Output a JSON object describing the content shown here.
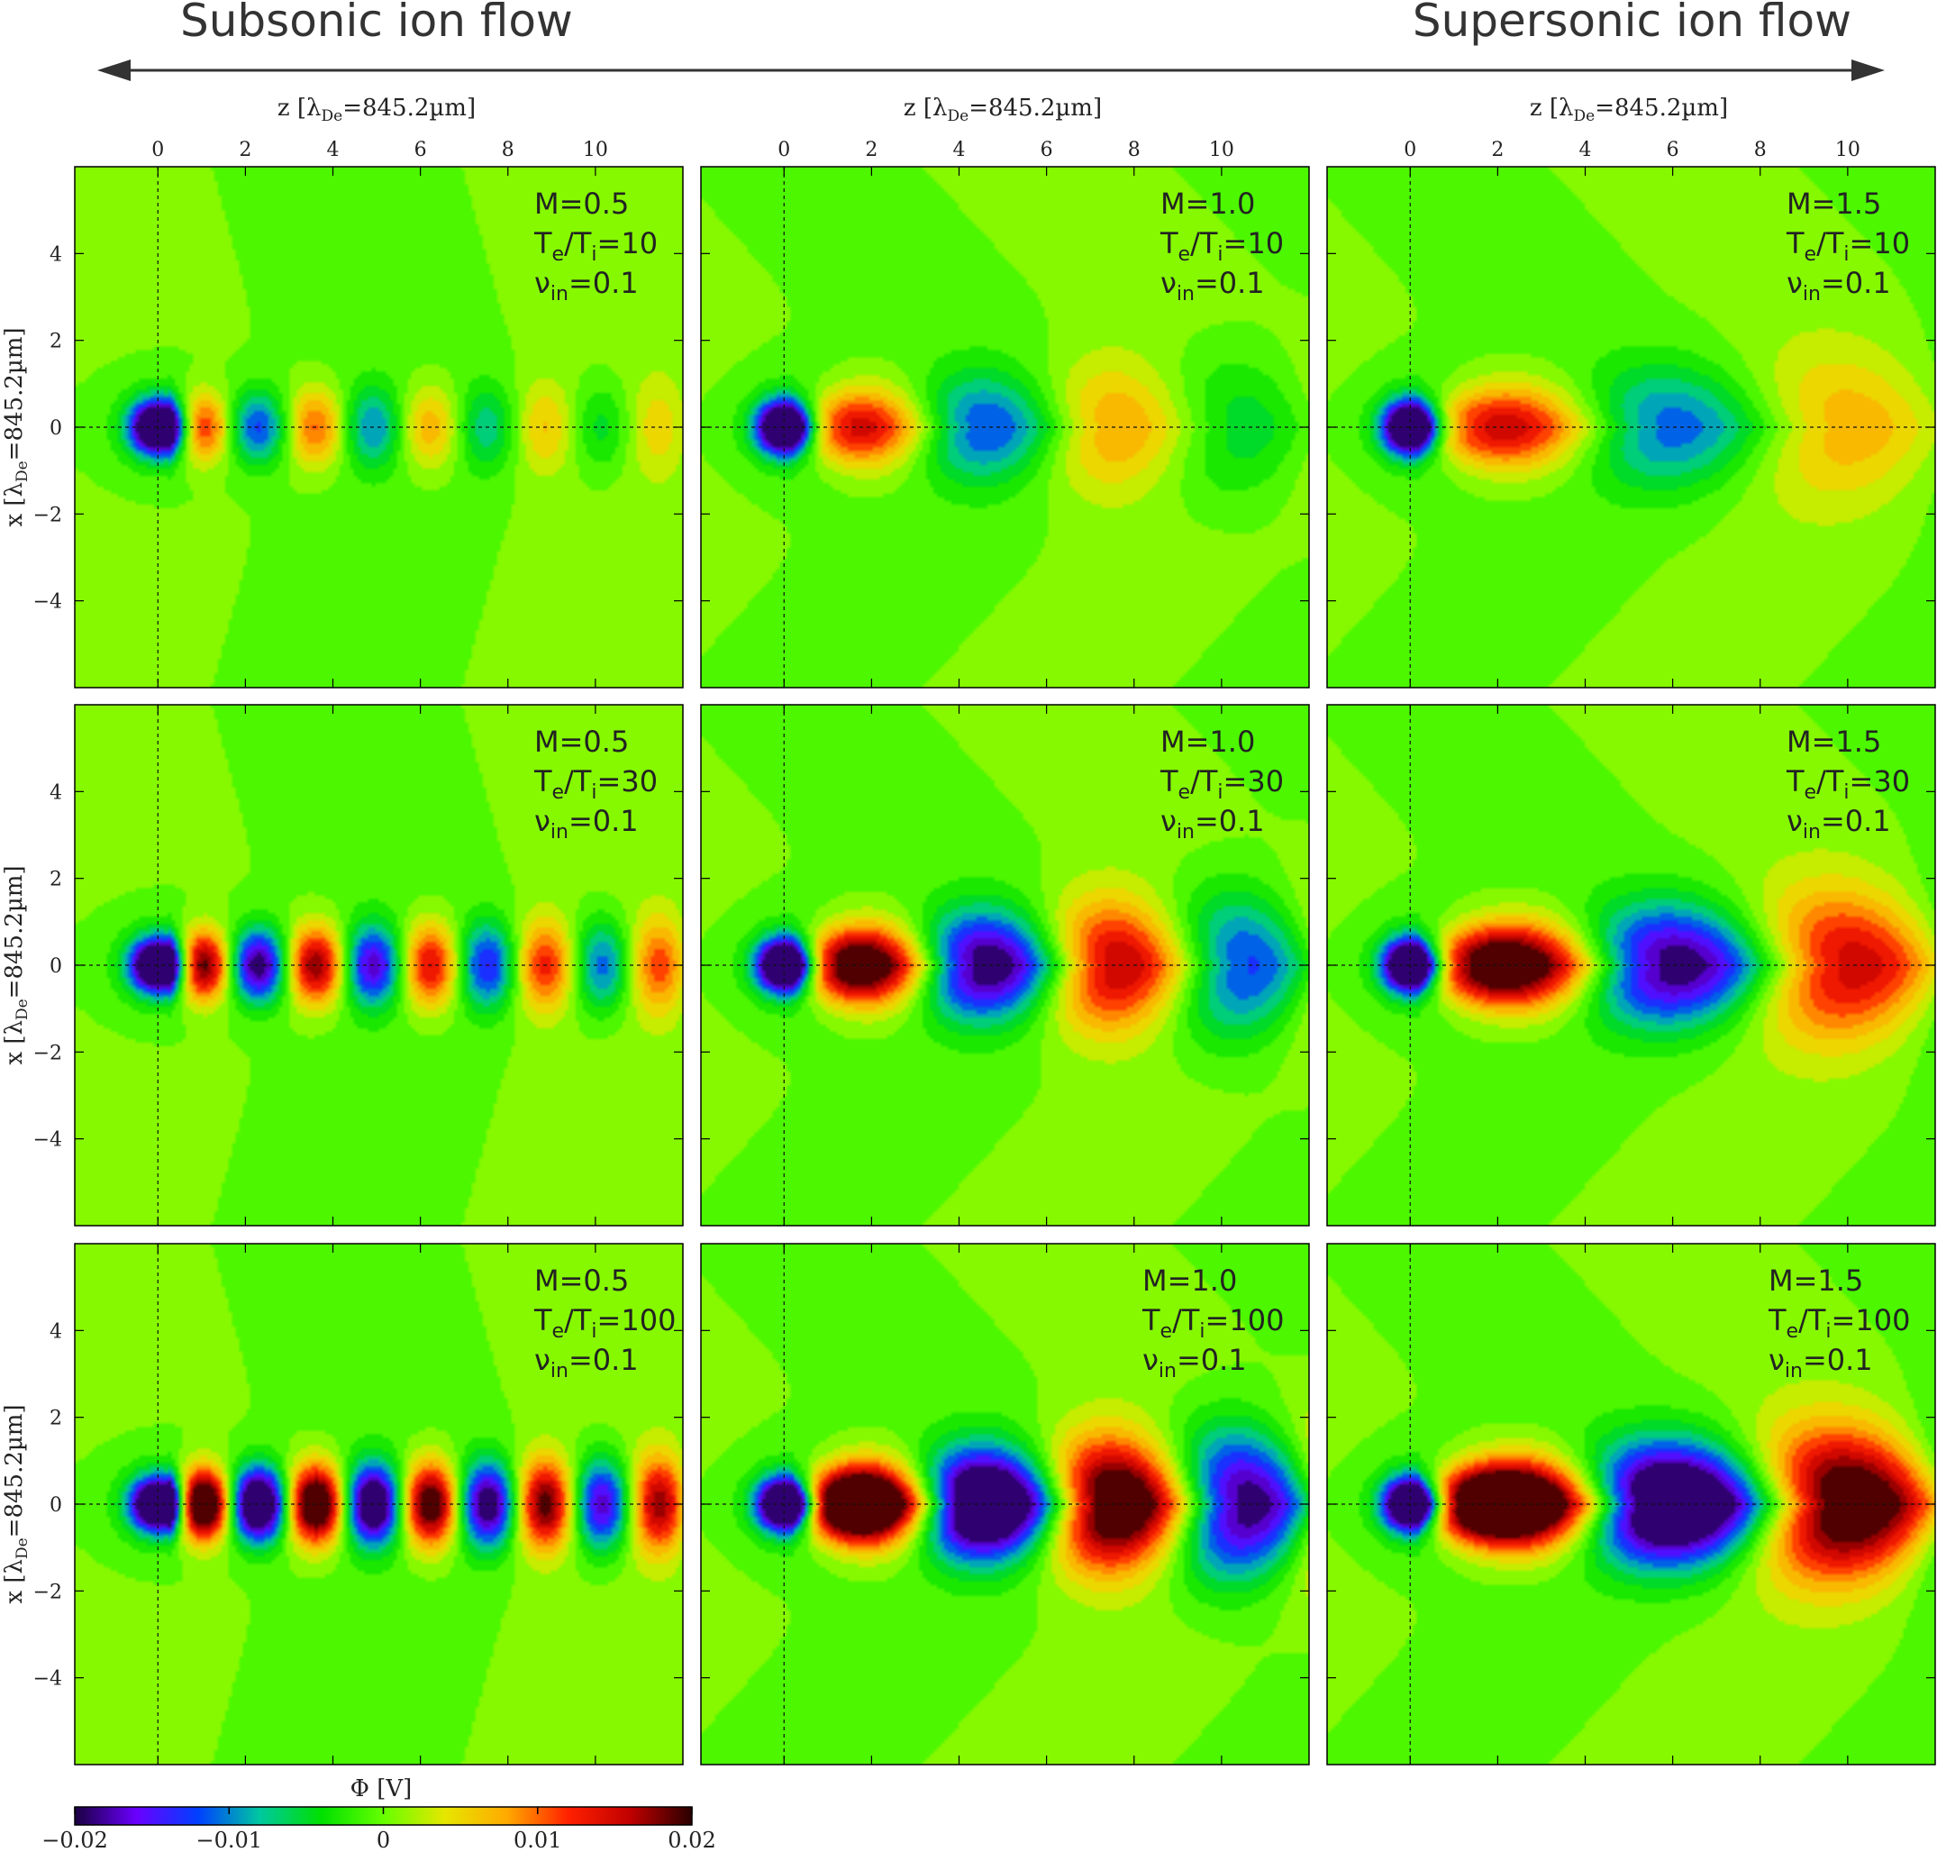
{
  "header": {
    "left_label": "Subsonic ion flow",
    "right_label": "Supersonic ion flow"
  },
  "axes": {
    "x_label_main": "z [λ",
    "x_label_sub": "De",
    "x_label_tail": "=845.2µm]",
    "y_label_main": "x [λ",
    "y_label_sub": "De",
    "y_label_tail": "=845.2µm]",
    "x_ticks": [
      "0",
      "2",
      "4",
      "6",
      "8",
      "10"
    ],
    "x_tick_values": [
      0,
      2,
      4,
      6,
      8,
      10
    ],
    "y_ticks": [
      "4",
      "2",
      "0",
      "−2",
      "−4"
    ],
    "y_tick_values": [
      4,
      2,
      0,
      -2,
      -4
    ],
    "xlim": [
      -1.9,
      12.0
    ],
    "ylim": [
      -6.0,
      6.0
    ]
  },
  "colorbar": {
    "label": "Φ [V]",
    "tick_labels": [
      "−0.02",
      "−0.01",
      "0",
      "0.01",
      "0.02"
    ],
    "tick_values": [
      -0.02,
      -0.01,
      0,
      0.01,
      0.02
    ],
    "range": [
      -0.02,
      0.02
    ],
    "colors": [
      "#1a0040",
      "#6a00ff",
      "#0040ff",
      "#00c8a0",
      "#00e000",
      "#66ff00",
      "#e6e600",
      "#ffaa00",
      "#ff2000",
      "#c00000",
      "#2a0000"
    ]
  },
  "chart_data": [
    {
      "type": "heatmap",
      "row": 1,
      "col": 1,
      "M_label": "M=0.5",
      "T_main": "T",
      "T_sub1": "e",
      "T_mid": "/T",
      "T_sub2": "i",
      "T_value": "=10",
      "nu_main": "ν",
      "nu_sub": "in",
      "nu_value": "=0.1",
      "M": 0.5,
      "Te_Ti": 10,
      "nu_in": 0.1
    },
    {
      "type": "heatmap",
      "row": 1,
      "col": 2,
      "M_label": "M=1.0",
      "T_main": "T",
      "T_sub1": "e",
      "T_mid": "/T",
      "T_sub2": "i",
      "T_value": "=10",
      "nu_main": "ν",
      "nu_sub": "in",
      "nu_value": "=0.1",
      "M": 1.0,
      "Te_Ti": 10,
      "nu_in": 0.1
    },
    {
      "type": "heatmap",
      "row": 1,
      "col": 3,
      "M_label": "M=1.5",
      "T_main": "T",
      "T_sub1": "e",
      "T_mid": "/T",
      "T_sub2": "i",
      "T_value": "=10",
      "nu_main": "ν",
      "nu_sub": "in",
      "nu_value": "=0.1",
      "M": 1.5,
      "Te_Ti": 10,
      "nu_in": 0.1
    },
    {
      "type": "heatmap",
      "row": 2,
      "col": 1,
      "M_label": "M=0.5",
      "T_main": "T",
      "T_sub1": "e",
      "T_mid": "/T",
      "T_sub2": "i",
      "T_value": "=30",
      "nu_main": "ν",
      "nu_sub": "in",
      "nu_value": "=0.1",
      "M": 0.5,
      "Te_Ti": 30,
      "nu_in": 0.1
    },
    {
      "type": "heatmap",
      "row": 2,
      "col": 2,
      "M_label": "M=1.0",
      "T_main": "T",
      "T_sub1": "e",
      "T_mid": "/T",
      "T_sub2": "i",
      "T_value": "=30",
      "nu_main": "ν",
      "nu_sub": "in",
      "nu_value": "=0.1",
      "M": 1.0,
      "Te_Ti": 30,
      "nu_in": 0.1
    },
    {
      "type": "heatmap",
      "row": 2,
      "col": 3,
      "M_label": "M=1.5",
      "T_main": "T",
      "T_sub1": "e",
      "T_mid": "/T",
      "T_sub2": "i",
      "T_value": "=30",
      "nu_main": "ν",
      "nu_sub": "in",
      "nu_value": "=0.1",
      "M": 1.5,
      "Te_Ti": 30,
      "nu_in": 0.1
    },
    {
      "type": "heatmap",
      "row": 3,
      "col": 1,
      "M_label": "M=0.5",
      "T_main": "T",
      "T_sub1": "e",
      "T_mid": "/T",
      "T_sub2": "i",
      "T_value": "=100",
      "nu_main": "ν",
      "nu_sub": "in",
      "nu_value": "=0.1",
      "M": 0.5,
      "Te_Ti": 100,
      "nu_in": 0.1
    },
    {
      "type": "heatmap",
      "row": 3,
      "col": 2,
      "M_label": "M=1.0",
      "T_main": "T",
      "T_sub1": "e",
      "T_mid": "/T",
      "T_sub2": "i",
      "T_value": "=100",
      "nu_main": "ν",
      "nu_sub": "in",
      "nu_value": "=0.1",
      "M": 1.0,
      "Te_Ti": 100,
      "nu_in": 0.1
    },
    {
      "type": "heatmap",
      "row": 3,
      "col": 3,
      "M_label": "M=1.5",
      "T_main": "T",
      "T_sub1": "e",
      "T_mid": "/T",
      "T_sub2": "i",
      "T_value": "=100",
      "nu_main": "ν",
      "nu_sub": "in",
      "nu_value": "=0.1",
      "M": 1.5,
      "Te_Ti": 100,
      "nu_in": 0.1
    }
  ]
}
